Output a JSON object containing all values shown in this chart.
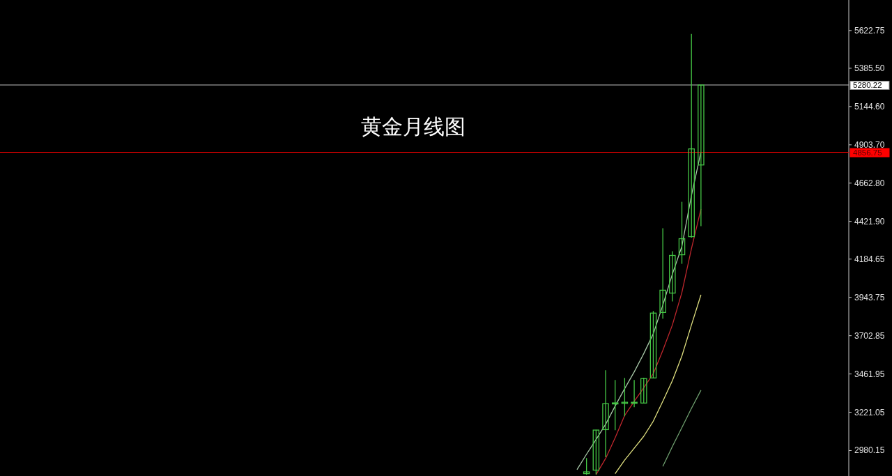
{
  "chart_data": {
    "type": "candlestick",
    "title": "黄金月线图",
    "color": "#46c846",
    "categories": [
      null,
      null,
      null,
      null,
      null,
      null,
      null,
      null,
      null,
      null,
      null,
      null,
      null,
      null,
      null,
      null,
      null,
      null,
      null,
      null,
      null,
      null,
      null,
      null,
      null,
      null,
      null,
      null,
      null,
      null,
      null,
      null,
      null,
      null,
      null,
      null,
      null,
      null,
      null,
      null,
      null,
      null,
      null,
      null,
      null,
      null,
      null,
      null,
      null,
      null,
      null,
      null,
      null,
      null,
      null,
      null,
      null,
      null,
      null,
      null,
      null,
      null,
      null,
      null,
      null,
      null,
      null,
      null,
      null,
      null,
      null,
      null,
      null,
      null,
      null,
      null,
      null,
      null,
      null,
      null,
      null,
      null,
      null,
      null,
      null,
      null,
      null,
      null,
      null
    ],
    "ohlc": [
      null,
      null,
      null,
      null,
      null,
      null,
      null,
      null,
      null,
      null,
      null,
      null,
      null,
      null,
      null,
      null,
      null,
      null,
      null,
      null,
      null,
      null,
      null,
      null,
      null,
      null,
      null,
      null,
      null,
      null,
      null,
      null,
      null,
      null,
      null,
      null,
      null,
      null,
      null,
      null,
      null,
      null,
      null,
      null,
      null,
      null,
      null,
      null,
      null,
      null,
      null,
      null,
      null,
      null,
      null,
      null,
      null,
      null,
      null,
      null,
      null,
      [
        2835,
        2933,
        2828,
        2846
      ],
      [
        2857,
        3110,
        2830,
        3109
      ],
      [
        3112,
        3485,
        2938,
        3275
      ],
      [
        3280,
        3424,
        3108,
        3277
      ],
      [
        3277,
        3437,
        3196,
        3284
      ],
      [
        3284,
        3424,
        3253,
        3282
      ],
      [
        3279,
        3438,
        3279,
        3433
      ],
      [
        3437,
        3858,
        3437,
        3845
      ],
      [
        3849,
        4379,
        3810,
        3989
      ],
      [
        3971,
        4234,
        3919,
        4208
      ],
      [
        4212,
        4545,
        4155,
        4313
      ],
      [
        4326,
        5601,
        4320,
        4878
      ],
      [
        4777,
        5280,
        4392,
        5280
      ],
      null,
      null,
      null,
      null,
      null,
      null,
      null,
      null,
      null,
      null,
      null,
      null,
      null,
      null,
      null
    ],
    "series": [
      {
        "type": "line",
        "color": "#a8c8a8",
        "values": [
          null,
          null,
          null,
          null,
          null,
          null,
          null,
          null,
          null,
          null,
          null,
          null,
          null,
          null,
          null,
          null,
          null,
          null,
          null,
          null,
          null,
          null,
          null,
          null,
          null,
          null,
          null,
          null,
          null,
          null,
          null,
          null,
          null,
          null,
          null,
          null,
          null,
          null,
          null,
          null,
          null,
          null,
          null,
          null,
          null,
          null,
          null,
          null,
          null,
          null,
          null,
          null,
          null,
          null,
          null,
          null,
          null,
          null,
          null,
          null,
          2860,
          2957,
          3050,
          3145,
          3260,
          3370,
          3475,
          3590,
          3715,
          3895,
          4090,
          4265,
          4585,
          4860,
          null,
          null,
          null,
          null,
          null,
          null,
          null,
          null,
          null,
          null,
          null,
          null,
          null,
          null,
          null
        ]
      },
      {
        "type": "line",
        "color": "#c0272d",
        "values": [
          null,
          null,
          null,
          null,
          null,
          null,
          null,
          null,
          null,
          null,
          null,
          null,
          null,
          null,
          null,
          null,
          null,
          null,
          null,
          null,
          null,
          null,
          null,
          null,
          null,
          null,
          null,
          null,
          null,
          null,
          null,
          null,
          null,
          null,
          null,
          null,
          null,
          null,
          null,
          null,
          null,
          null,
          null,
          null,
          null,
          null,
          null,
          null,
          null,
          null,
          null,
          null,
          null,
          null,
          null,
          null,
          null,
          null,
          null,
          null,
          null,
          null,
          2828,
          2930,
          3060,
          3201,
          3290,
          3375,
          3464,
          3610,
          3770,
          3975,
          4250,
          4500,
          null,
          null,
          null,
          null,
          null,
          null,
          null,
          null,
          null,
          null,
          null,
          null,
          null,
          null,
          null
        ]
      },
      {
        "type": "line",
        "color": "#e0e080",
        "values": [
          null,
          null,
          null,
          null,
          null,
          null,
          null,
          null,
          null,
          null,
          null,
          null,
          null,
          null,
          null,
          null,
          null,
          null,
          null,
          null,
          null,
          null,
          null,
          null,
          null,
          null,
          null,
          null,
          null,
          null,
          null,
          null,
          null,
          null,
          null,
          null,
          null,
          null,
          null,
          null,
          null,
          null,
          null,
          null,
          null,
          null,
          null,
          null,
          null,
          null,
          null,
          null,
          null,
          null,
          null,
          null,
          null,
          null,
          null,
          null,
          null,
          null,
          null,
          null,
          2835,
          2920,
          2995,
          3070,
          3165,
          3290,
          3420,
          3575,
          3770,
          3960,
          null,
          null,
          null,
          null,
          null,
          null,
          null,
          null,
          null,
          null,
          null,
          null,
          null,
          null,
          null
        ]
      },
      {
        "type": "line",
        "color": "#6f9f6f",
        "values": [
          null,
          null,
          null,
          null,
          null,
          null,
          null,
          null,
          null,
          null,
          null,
          null,
          null,
          null,
          null,
          null,
          null,
          null,
          null,
          null,
          null,
          null,
          null,
          null,
          null,
          null,
          null,
          null,
          null,
          null,
          null,
          null,
          null,
          null,
          null,
          null,
          null,
          null,
          null,
          null,
          null,
          null,
          null,
          null,
          null,
          null,
          null,
          null,
          null,
          null,
          null,
          null,
          null,
          null,
          null,
          null,
          null,
          null,
          null,
          null,
          null,
          null,
          null,
          null,
          null,
          null,
          null,
          null,
          null,
          2880,
          3005,
          3125,
          3245,
          3360,
          null,
          null,
          null,
          null,
          null,
          null,
          null,
          null,
          null,
          null,
          null,
          null,
          null,
          null,
          null
        ]
      }
    ],
    "ylim": [
      2820,
      5815
    ],
    "yticks": [
      {
        "value": 2980.15,
        "label": "2980.15"
      },
      {
        "value": 3221.05,
        "label": "3221.05"
      },
      {
        "value": 3461.95,
        "label": "3461.95"
      },
      {
        "value": 3702.85,
        "label": "3702.85"
      },
      {
        "value": 3943.75,
        "label": "3943.75"
      },
      {
        "value": 4184.65,
        "label": "4184.65"
      },
      {
        "value": 4421.9,
        "label": "4421.90"
      },
      {
        "value": 4662.8,
        "label": "4662.80"
      },
      {
        "value": 4903.7,
        "label": "4903.70"
      },
      {
        "value": 5144.6,
        "label": "5144.60"
      },
      {
        "value": 5385.5,
        "label": "5385.50"
      },
      {
        "value": 5622.75,
        "label": "5622.75"
      }
    ],
    "ref_lines": [
      {
        "axis": "y",
        "value": 5280.22,
        "label": "5280.22",
        "color": "#c0c0c0"
      },
      {
        "axis": "y",
        "value": 4856.75,
        "label": "4856.75",
        "color": "#ff0000"
      }
    ],
    "tick_labels": "y",
    "grid": false
  }
}
